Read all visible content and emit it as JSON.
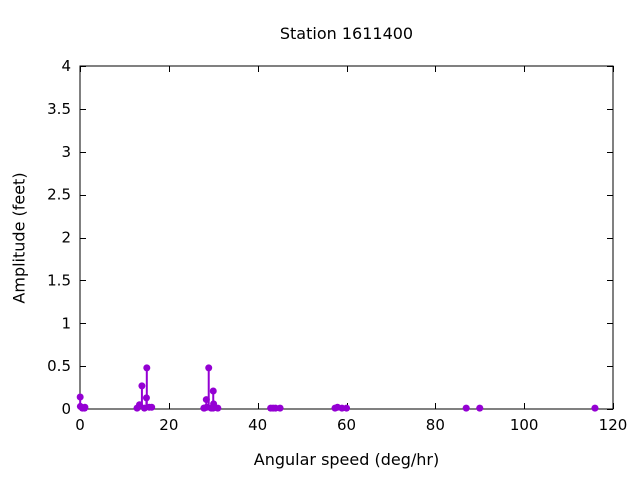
{
  "chart_data": {
    "type": "scatter",
    "style": "impulses-with-points",
    "title": "Station 1611400",
    "xlabel": "Angular speed (deg/hr)",
    "ylabel": "Amplitude (feet)",
    "xlim": [
      0,
      120
    ],
    "ylim": [
      0,
      4
    ],
    "xticks": [
      0,
      20,
      40,
      60,
      80,
      100,
      120
    ],
    "yticks": [
      0,
      0.5,
      1,
      1.5,
      2,
      2.5,
      3,
      3.5,
      4
    ],
    "grid": false,
    "legend": "none",
    "marker_color": "#9400d3",
    "axis_color": "#000000",
    "background_color": "#ffffff",
    "points": [
      [
        0.04,
        0.14
      ],
      [
        0.08,
        0.03
      ],
      [
        0.54,
        0.01
      ],
      [
        1.02,
        0.01
      ],
      [
        1.1,
        0.02
      ],
      [
        12.85,
        0.01
      ],
      [
        13.4,
        0.05
      ],
      [
        13.94,
        0.27
      ],
      [
        14.5,
        0.01
      ],
      [
        14.96,
        0.13
      ],
      [
        15.04,
        0.48
      ],
      [
        15.59,
        0.02
      ],
      [
        16.14,
        0.02
      ],
      [
        27.9,
        0.01
      ],
      [
        27.97,
        0.01
      ],
      [
        28.44,
        0.11
      ],
      [
        28.51,
        0.02
      ],
      [
        28.98,
        0.48
      ],
      [
        29.53,
        0.01
      ],
      [
        29.96,
        0.01
      ],
      [
        30.0,
        0.21
      ],
      [
        30.08,
        0.06
      ],
      [
        31.02,
        0.01
      ],
      [
        42.93,
        0.01
      ],
      [
        43.48,
        0.01
      ],
      [
        44.03,
        0.01
      ],
      [
        45.04,
        0.01
      ],
      [
        57.42,
        0.01
      ],
      [
        57.97,
        0.02
      ],
      [
        58.98,
        0.01
      ],
      [
        60.0,
        0.01
      ],
      [
        86.95,
        0.01
      ],
      [
        90.0,
        0.01
      ],
      [
        115.94,
        0.01
      ]
    ]
  }
}
